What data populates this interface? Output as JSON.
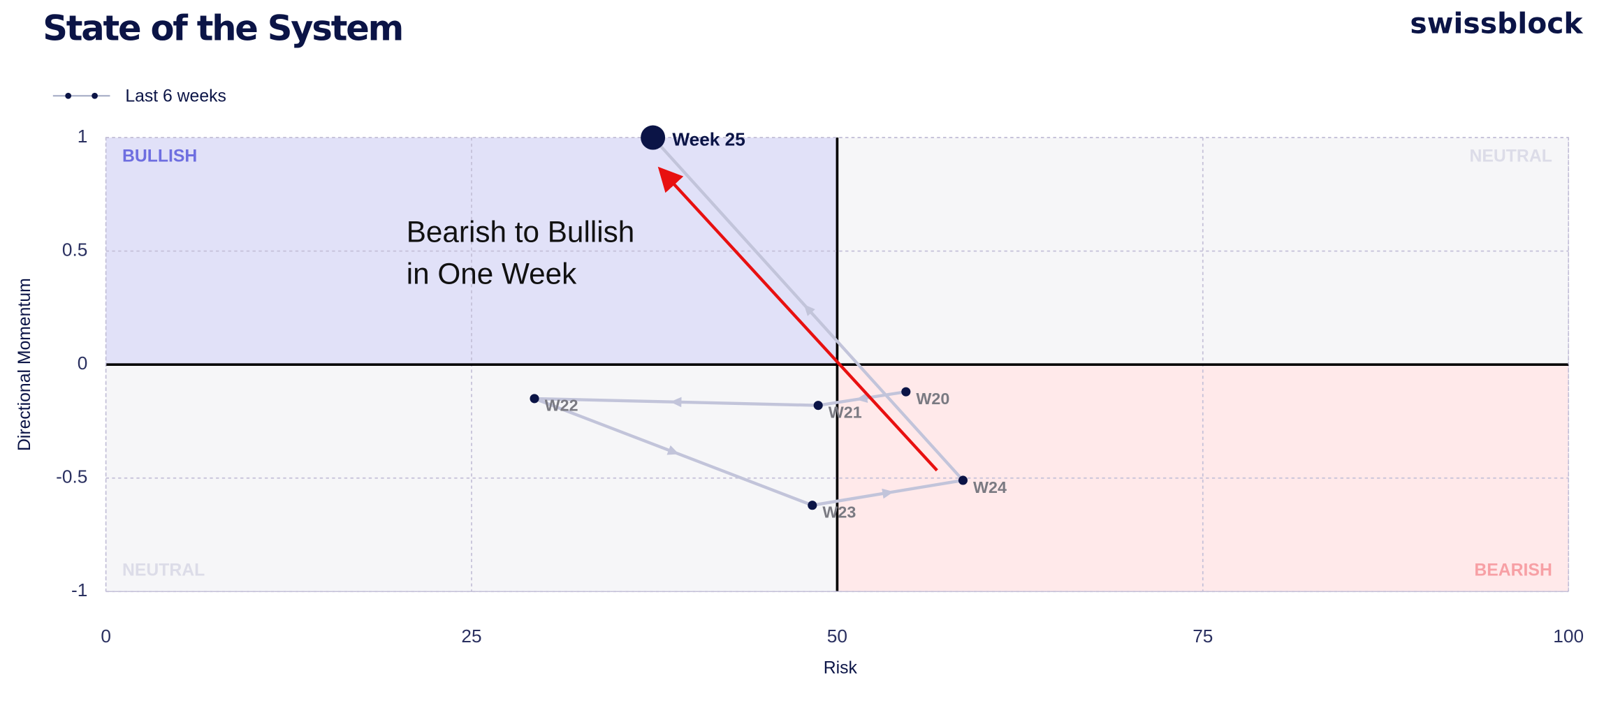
{
  "chart_data": {
    "type": "scatter",
    "title": "State of the System",
    "logo": "swissblock",
    "xlabel": "Risk",
    "ylabel": "Directional Momentum",
    "xlim": [
      0,
      100
    ],
    "ylim": [
      -1,
      1
    ],
    "xticks": [
      0,
      25,
      50,
      75,
      100
    ],
    "yticks": [
      1,
      0.5,
      0,
      -0.5,
      -1
    ],
    "quadrant_labels": {
      "top_left": "BULLISH",
      "top_right": "NEUTRAL",
      "bottom_left": "NEUTRAL",
      "bottom_right": "BEARISH"
    },
    "annotation": [
      "Bearish to Bullish",
      "in One Week"
    ],
    "series": [
      {
        "name": "Last 6 weeks",
        "color": "#0b1446",
        "labels": [
          "W20",
          "W21",
          "W22",
          "W23",
          "W24",
          "Week 25"
        ],
        "x": [
          54.7,
          48.7,
          29.3,
          48.3,
          58.6,
          37.4
        ],
        "values": [
          -0.12,
          -0.18,
          -0.15,
          -0.62,
          -0.51,
          1.0
        ]
      }
    ]
  }
}
